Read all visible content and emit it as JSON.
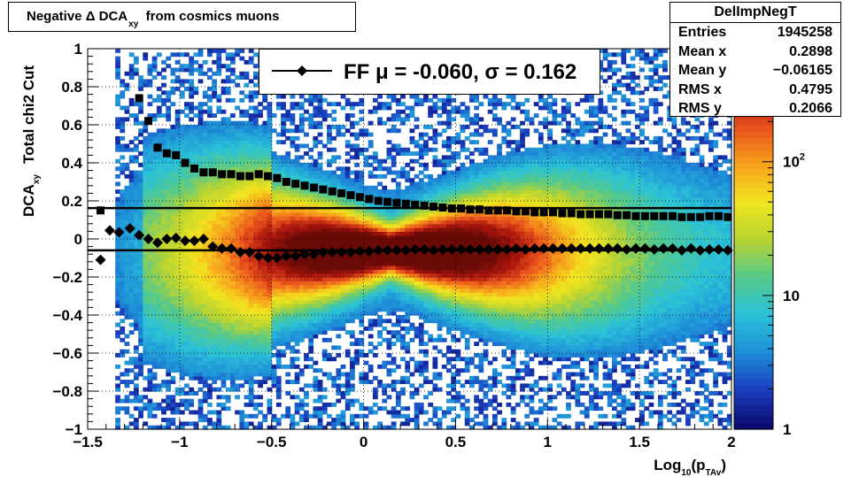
{
  "header": {
    "title_main": "Negative Δ DCA",
    "title_sub": "xy",
    "title_rest": "from cosmics muons"
  },
  "stats": {
    "name": "DelImpNegT",
    "rows": [
      {
        "label": "Entries",
        "value": "1945258"
      },
      {
        "label": "Mean x",
        "value": "0.2898"
      },
      {
        "label": "Mean y",
        "value": "−0.06165"
      },
      {
        "label": "RMS x",
        "value": "0.4795"
      },
      {
        "label": "RMS y",
        "value": "0.2066"
      }
    ]
  },
  "legend": {
    "text": "FF μ = -0.060, σ =   0.162"
  },
  "colors": {
    "points": "#000000",
    "frame": "#000000",
    "palette": [
      "#0b0a6f",
      "#1a3fbf",
      "#1e8fd8",
      "#2bc2d8",
      "#55c98a",
      "#b9d431",
      "#f2e51f",
      "#f7a21c",
      "#e8501c",
      "#a8150d",
      "#6a0a06"
    ]
  },
  "chart_data": {
    "type": "heatmap",
    "title": "Negative Δ DCA_xy from cosmics muons",
    "xlabel": "Log10(pTAv)",
    "xlabel_parts": {
      "main": "Log",
      "sub1": "10",
      "paren": "(p",
      "sub2": "TAv",
      "close": ")"
    },
    "ylabel": "DCA_xy  Total chi2 Cut",
    "ylabel_parts": {
      "main": "DCA",
      "sub": "xy",
      "rest": "Total chi2 Cut"
    },
    "xlim": [
      -1.5,
      2
    ],
    "ylim": [
      -1,
      1
    ],
    "x_ticks": [
      -1.5,
      -1,
      -0.5,
      0,
      0.5,
      1,
      1.5,
      2
    ],
    "x_tick_labels": [
      "−1.5",
      "−1",
      "−0.5",
      "0",
      "0.5",
      "1",
      "1.5",
      "2"
    ],
    "y_ticks": [
      -1,
      -0.8,
      -0.6,
      -0.4,
      -0.2,
      0,
      0.2,
      0.4,
      0.6,
      0.8,
      1
    ],
    "y_tick_labels": [
      "−1",
      "−0.8",
      "−0.6",
      "−0.4",
      "−0.2",
      "0",
      "0.2",
      "0.4",
      "0.6",
      "0.8",
      "1"
    ],
    "grid": true,
    "z_scale": "log",
    "z_range": [
      1,
      700
    ],
    "z_tick_labels": [
      {
        "value": 1,
        "label": "1"
      },
      {
        "value": 10,
        "label": "10"
      },
      {
        "value": 100,
        "label": "10",
        "sup": "2"
      }
    ],
    "hlines": [
      0.162,
      -0.06
    ],
    "series": [
      {
        "name": "FF",
        "marker": "diamond",
        "x": [
          -1.43,
          -1.38,
          -1.33,
          -1.27,
          -1.22,
          -1.17,
          -1.12,
          -1.07,
          -1.02,
          -0.97,
          -0.92,
          -0.87,
          -0.82,
          -0.77,
          -0.72,
          -0.67,
          -0.62,
          -0.57,
          -0.52,
          -0.47,
          -0.42,
          -0.37,
          -0.32,
          -0.27,
          -0.22,
          -0.17,
          -0.12,
          -0.07,
          -0.02,
          0.03,
          0.08,
          0.13,
          0.18,
          0.23,
          0.28,
          0.33,
          0.38,
          0.43,
          0.48,
          0.53,
          0.58,
          0.63,
          0.68,
          0.73,
          0.78,
          0.83,
          0.88,
          0.93,
          0.98,
          1.03,
          1.08,
          1.13,
          1.18,
          1.23,
          1.28,
          1.33,
          1.38,
          1.43,
          1.48,
          1.53,
          1.58,
          1.63,
          1.68,
          1.73,
          1.78,
          1.83,
          1.88,
          1.93,
          1.98
        ],
        "y": [
          -0.11,
          0.045,
          0.035,
          0.055,
          0.02,
          0.0,
          -0.02,
          0.0,
          0.005,
          -0.01,
          -0.01,
          0.0,
          -0.04,
          -0.05,
          -0.05,
          -0.07,
          -0.07,
          -0.09,
          -0.1,
          -0.1,
          -0.09,
          -0.09,
          -0.08,
          -0.08,
          -0.07,
          -0.07,
          -0.07,
          -0.07,
          -0.065,
          -0.065,
          -0.06,
          -0.06,
          -0.06,
          -0.06,
          -0.055,
          -0.055,
          -0.06,
          -0.055,
          -0.055,
          -0.055,
          -0.055,
          -0.055,
          -0.055,
          -0.055,
          -0.055,
          -0.05,
          -0.055,
          -0.05,
          -0.05,
          -0.05,
          -0.05,
          -0.05,
          -0.05,
          -0.05,
          -0.05,
          -0.05,
          -0.05,
          -0.055,
          -0.05,
          -0.05,
          -0.055,
          -0.05,
          -0.05,
          -0.06,
          -0.05,
          -0.06,
          -0.055,
          -0.055,
          -0.06
        ],
        "y_upper": [
          0.15,
          null,
          null,
          null,
          0.74,
          0.62,
          0.48,
          0.45,
          0.44,
          0.4,
          0.37,
          0.35,
          0.35,
          0.34,
          0.34,
          0.33,
          0.33,
          0.34,
          0.33,
          0.32,
          0.3,
          0.29,
          0.28,
          0.27,
          0.26,
          0.25,
          0.24,
          0.23,
          0.22,
          0.21,
          0.2,
          0.195,
          0.19,
          0.185,
          0.18,
          0.175,
          0.17,
          0.165,
          0.16,
          0.16,
          0.155,
          0.155,
          0.15,
          0.15,
          0.15,
          0.145,
          0.145,
          0.14,
          0.14,
          0.14,
          0.135,
          0.135,
          0.13,
          0.13,
          0.13,
          0.13,
          0.125,
          0.125,
          0.12,
          0.12,
          0.12,
          0.12,
          0.12,
          0.115,
          0.115,
          0.115,
          0.12,
          0.12,
          0.115
        ]
      }
    ]
  }
}
